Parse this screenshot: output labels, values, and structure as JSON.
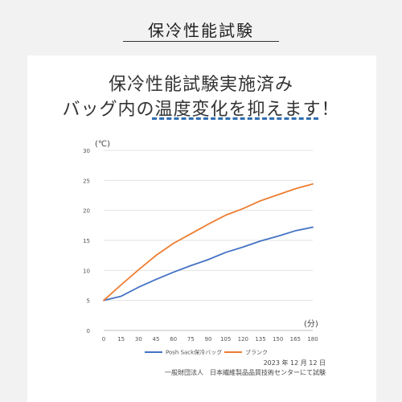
{
  "header": {
    "title": "保冷性能試験"
  },
  "headline": {
    "line1": "保冷性能試験実施済み",
    "line2": "バッグ内の温度変化を抑えます！"
  },
  "chart_data": {
    "type": "line",
    "x": [
      0,
      15,
      30,
      45,
      60,
      75,
      90,
      105,
      120,
      135,
      150,
      165,
      180
    ],
    "series": [
      {
        "name": "Posh Sack保冷バッグ",
        "color": "#4472c4",
        "values": [
          5.0,
          5.7,
          7.2,
          8.5,
          9.7,
          10.8,
          11.8,
          13.0,
          13.9,
          14.9,
          15.7,
          16.6,
          17.2
        ]
      },
      {
        "name": "ブランク",
        "color": "#ed7d31",
        "values": [
          5.0,
          7.6,
          10.1,
          12.5,
          14.5,
          16.1,
          17.7,
          19.2,
          20.3,
          21.6,
          22.6,
          23.6,
          24.4
        ]
      }
    ],
    "ylim": [
      0,
      30
    ],
    "yticks": [
      0,
      5,
      10,
      15,
      20,
      25,
      30
    ],
    "y_unit": "(℃)",
    "x_unit": "(分)",
    "grid": "horizontal",
    "legend": "bottom"
  },
  "footnotes": {
    "date": "2023 年 12 月 12 日",
    "tester": "一般財団法人　日本繊維製品品質技術センターにて試験"
  }
}
